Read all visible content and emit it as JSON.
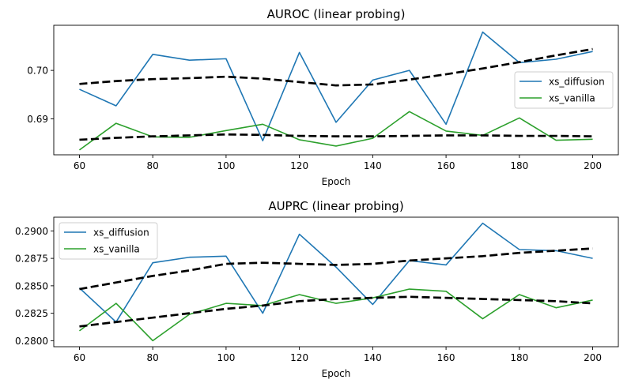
{
  "chart_data": [
    {
      "type": "line",
      "title": "AUROC (linear probing)",
      "xlabel": "Epoch",
      "ylabel": "",
      "xlim": [
        53,
        207
      ],
      "ylim": [
        0.6826,
        0.7093
      ],
      "xticks": [
        60,
        80,
        100,
        120,
        140,
        160,
        180,
        200
      ],
      "xtick_labels": [
        "60",
        "80",
        "100",
        "120",
        "140",
        "160",
        "180",
        "200"
      ],
      "yticks": [
        0.69,
        0.7
      ],
      "ytick_labels": [
        "0.69",
        "0.70"
      ],
      "legend": "center-right",
      "grid": false,
      "x": [
        60,
        70,
        80,
        90,
        100,
        110,
        120,
        130,
        140,
        150,
        160,
        170,
        180,
        190,
        200
      ],
      "series": [
        {
          "name": "xs_diffusion",
          "color": "#1f77b4",
          "style": "solid",
          "values": [
            0.6961,
            0.6927,
            0.7033,
            0.7021,
            0.7024,
            0.6855,
            0.7037,
            0.6893,
            0.698,
            0.7,
            0.6889,
            0.7079,
            0.7016,
            0.7023,
            0.7039
          ]
        },
        {
          "name": "xs_vanilla",
          "color": "#2ca02c",
          "style": "solid",
          "values": [
            0.6836,
            0.6891,
            0.6863,
            0.6862,
            0.6876,
            0.6889,
            0.6857,
            0.6844,
            0.686,
            0.6915,
            0.6875,
            0.6866,
            0.6902,
            0.6856,
            0.6858
          ]
        },
        {
          "name": "",
          "color": "#000000",
          "style": "dashed",
          "values": [
            0.6972,
            0.6978,
            0.6982,
            0.6984,
            0.6987,
            0.6983,
            0.6976,
            0.6969,
            0.6971,
            0.6981,
            0.6992,
            0.7004,
            0.7017,
            0.7031,
            0.7044
          ]
        },
        {
          "name": "",
          "color": "#000000",
          "style": "dashed",
          "values": [
            0.6857,
            0.6861,
            0.6864,
            0.6866,
            0.6868,
            0.6867,
            0.6865,
            0.6864,
            0.6864,
            0.6865,
            0.6866,
            0.6866,
            0.6865,
            0.6865,
            0.6864
          ]
        }
      ]
    },
    {
      "type": "line",
      "title": "AUPRC (linear probing)",
      "xlabel": "Epoch",
      "ylabel": "",
      "xlim": [
        53,
        207
      ],
      "ylim": [
        0.27945,
        0.29125
      ],
      "xticks": [
        60,
        80,
        100,
        120,
        140,
        160,
        180,
        200
      ],
      "xtick_labels": [
        "60",
        "80",
        "100",
        "120",
        "140",
        "160",
        "180",
        "200"
      ],
      "yticks": [
        0.28,
        0.2825,
        0.285,
        0.2875,
        0.29
      ],
      "ytick_labels": [
        "0.2800",
        "0.2825",
        "0.2850",
        "0.2875",
        "0.2900"
      ],
      "legend": "top-left",
      "grid": false,
      "x": [
        60,
        70,
        80,
        90,
        100,
        110,
        120,
        130,
        140,
        150,
        160,
        170,
        180,
        190,
        200
      ],
      "series": [
        {
          "name": "xs_diffusion",
          "color": "#1f77b4",
          "style": "solid",
          "values": [
            0.2848,
            0.2817,
            0.2871,
            0.2876,
            0.2877,
            0.2825,
            0.2897,
            0.2867,
            0.2833,
            0.2873,
            0.2869,
            0.2907,
            0.2883,
            0.2882,
            0.2875
          ]
        },
        {
          "name": "xs_vanilla",
          "color": "#2ca02c",
          "style": "solid",
          "values": [
            0.2809,
            0.2834,
            0.28,
            0.2824,
            0.2834,
            0.2832,
            0.2842,
            0.2834,
            0.2839,
            0.2847,
            0.2845,
            0.282,
            0.2842,
            0.283,
            0.2837
          ]
        },
        {
          "name": "",
          "color": "#000000",
          "style": "dashed",
          "values": [
            0.2847,
            0.2853,
            0.2859,
            0.2864,
            0.287,
            0.2871,
            0.287,
            0.2869,
            0.287,
            0.2873,
            0.2875,
            0.2877,
            0.288,
            0.2882,
            0.2884
          ]
        },
        {
          "name": "",
          "color": "#000000",
          "style": "dashed",
          "values": [
            0.2813,
            0.2817,
            0.2821,
            0.2825,
            0.2829,
            0.2832,
            0.2836,
            0.2838,
            0.2839,
            0.284,
            0.2839,
            0.2838,
            0.2837,
            0.2836,
            0.2834
          ]
        }
      ]
    }
  ]
}
